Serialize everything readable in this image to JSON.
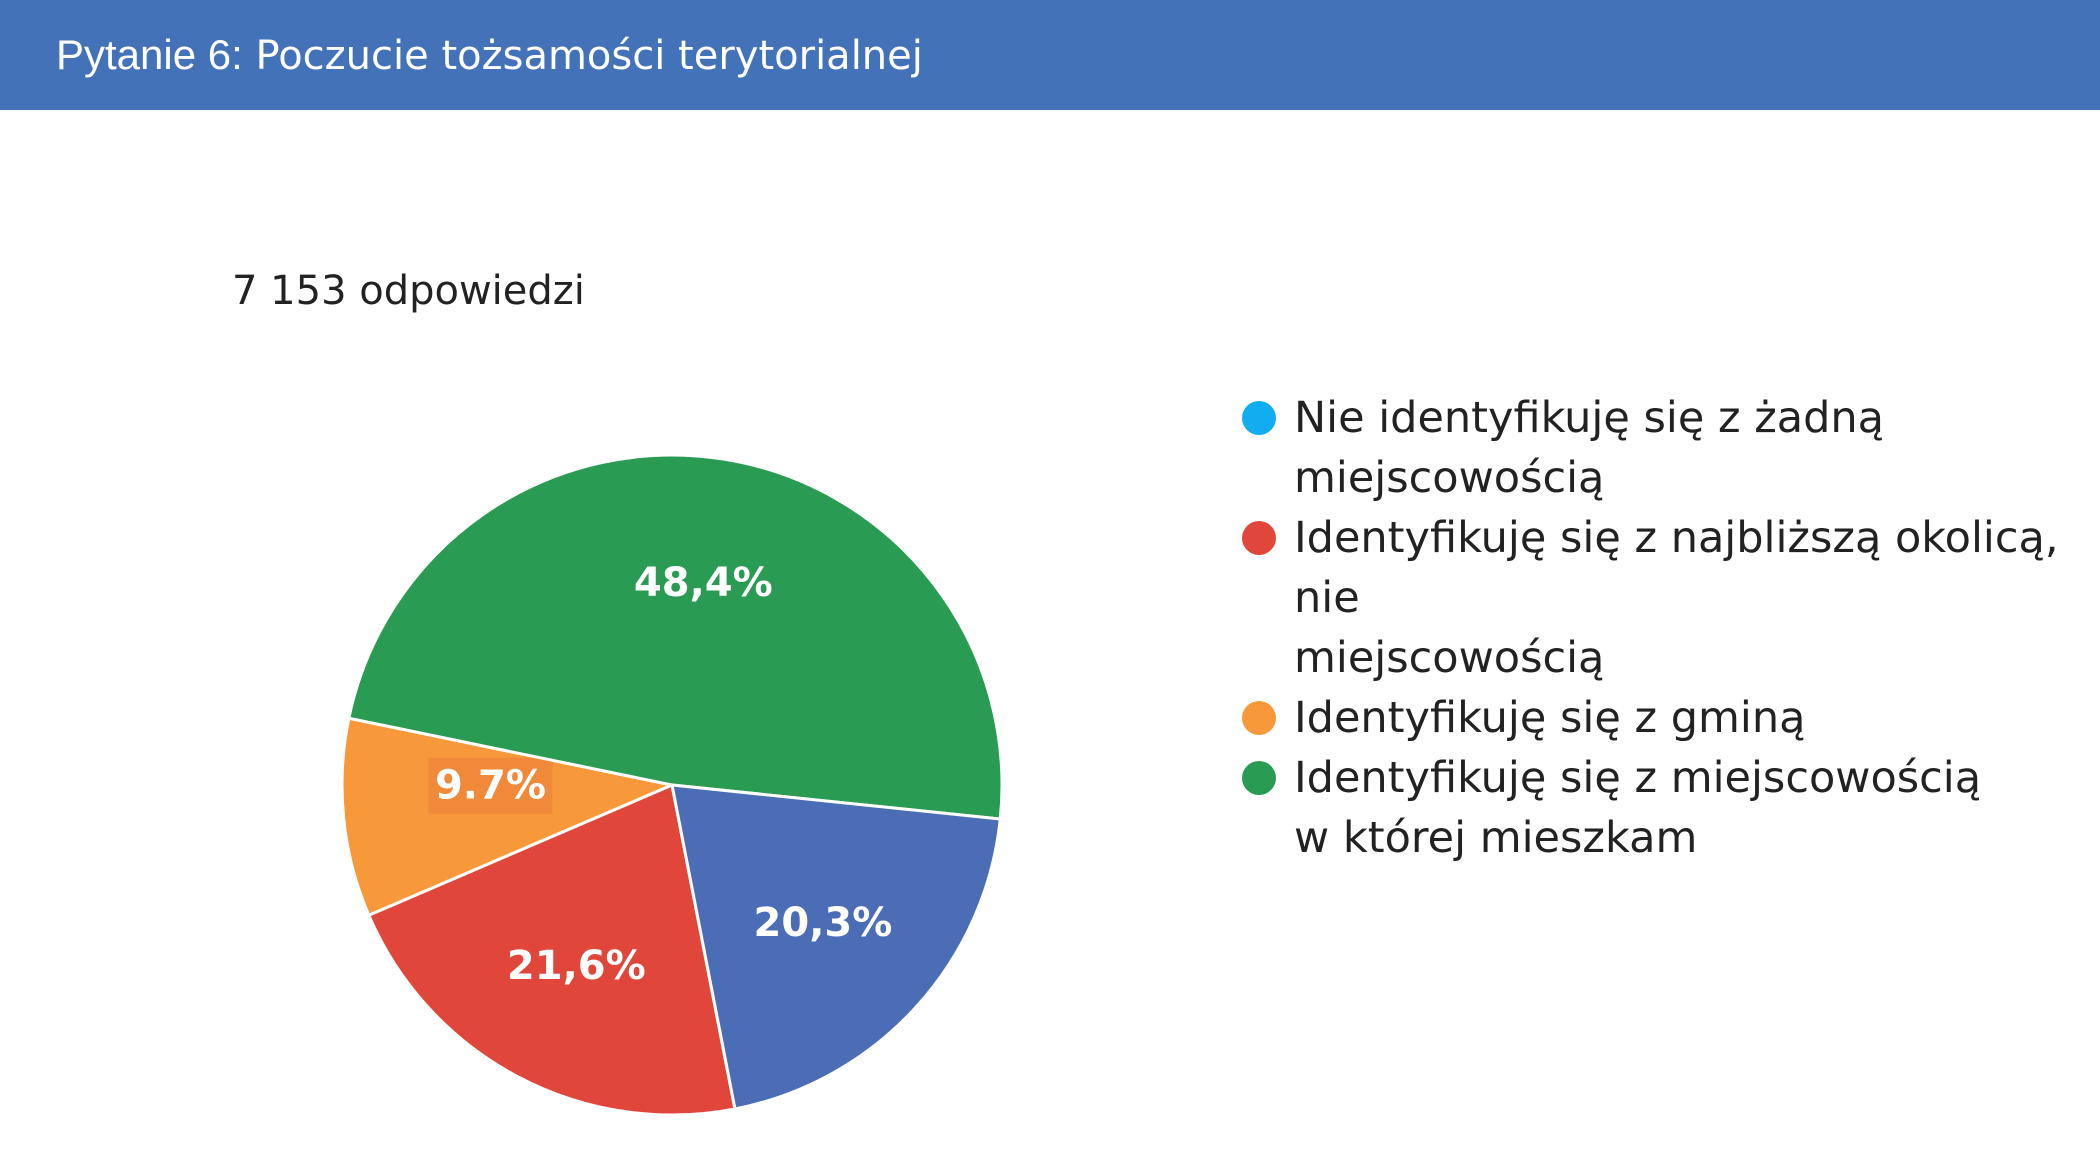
{
  "header": {
    "question": "Pytanie 6:",
    "title": "Poczucie tożsamości terytorialnej"
  },
  "response_count": "7 153 odpowiedzi",
  "colors": {
    "header_bg": "#4472b8",
    "blue": "#4a6db5",
    "red": "#e0473a",
    "orange": "#f7993a",
    "green": "#2a9b52",
    "light_blue": "#10aef0"
  },
  "chart_data": {
    "type": "pie",
    "legend_position": "right",
    "slices": [
      {
        "name": "Nie identyfikuję się z żadną miejscowością",
        "value": 0,
        "label": "",
        "color": "#10aef0"
      },
      {
        "name": "Identyfikuję się z najbliższą okolicą, nie miejscowością",
        "value": 21.6,
        "label": "21,6%",
        "color": "#e0473a"
      },
      {
        "name": "Identyfikuję się z gminą",
        "value": 9.7,
        "label": "9.7%",
        "color": "#f7993a"
      },
      {
        "name": "Identyfikuję się z miejscowością w której mieszkam",
        "value": 48.4,
        "label": "48,4%",
        "color": "#2a9b52"
      },
      {
        "name": "",
        "value": 20.3,
        "label": "20,3%",
        "color": "#4a6db5"
      }
    ],
    "legend": [
      {
        "label": "Nie identyfikuję się z żadną\nmiejscowością",
        "color": "#10aef0"
      },
      {
        "label": "Identyfikuję się z najbliższą okolicą, nie\nmiejscowością",
        "color": "#e0473a"
      },
      {
        "label": "Identyfikuję się z gminą",
        "color": "#f7993a"
      },
      {
        "label": "Identyfikuję się z miejscowością\nw której mieszkam",
        "color": "#2a9b52"
      }
    ]
  }
}
